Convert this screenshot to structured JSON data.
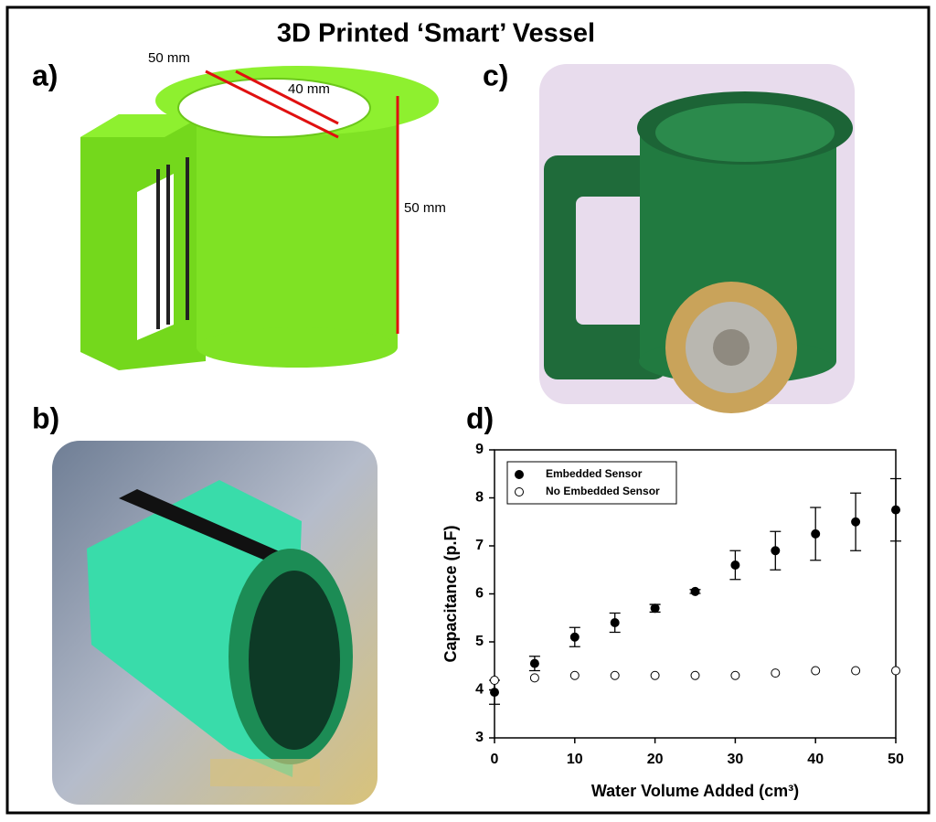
{
  "title": "3D Printed ‘Smart’ Vessel",
  "panels": {
    "a": {
      "label": "a)",
      "dimensions": [
        "50 mm",
        "40 mm",
        "50 mm"
      ]
    },
    "b": {
      "label": "b)"
    },
    "c": {
      "label": "c)"
    },
    "d": {
      "label": "d)"
    }
  },
  "chart_data": {
    "type": "scatter",
    "x_label": "Water Volume Added (cm³)",
    "y_label": "Capacitance (p.F)",
    "x": [
      0,
      5,
      10,
      15,
      20,
      25,
      30,
      35,
      40,
      45,
      50
    ],
    "series": [
      {
        "name": "Embedded Sensor",
        "color": "#000000",
        "fill": "#000000",
        "values": [
          3.95,
          4.55,
          5.1,
          5.4,
          5.7,
          6.05,
          6.6,
          6.9,
          7.25,
          7.5,
          7.75
        ],
        "errors": [
          0.25,
          0.15,
          0.2,
          0.2,
          0.08,
          0.04,
          0.3,
          0.4,
          0.55,
          0.6,
          0.65
        ]
      },
      {
        "name": "No Embedded Sensor",
        "color": "#000000",
        "fill": "#ffffff",
        "values": [
          4.2,
          4.25,
          4.3,
          4.3,
          4.3,
          4.3,
          4.3,
          4.35,
          4.4,
          4.4,
          4.4
        ]
      }
    ],
    "xlim": [
      0,
      50
    ],
    "xticks": [
      0,
      10,
      20,
      30,
      40,
      50
    ],
    "ylim": [
      3,
      9
    ],
    "yticks": [
      3,
      4,
      5,
      6,
      7,
      8,
      9
    ],
    "legend": "upper-left",
    "grid": false
  }
}
